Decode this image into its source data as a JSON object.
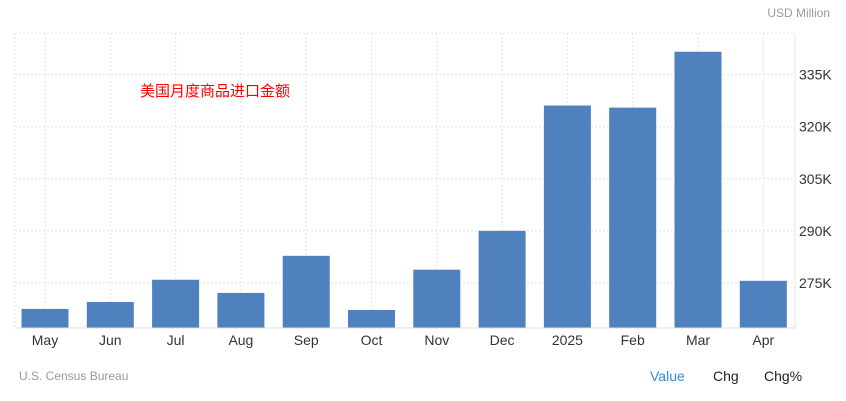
{
  "unit_label": "USD Million",
  "source": "U.S. Census Bureau",
  "tabs": [
    {
      "label": "Value",
      "active": true
    },
    {
      "label": "Chg",
      "active": false
    },
    {
      "label": "Chg%",
      "active": false
    }
  ],
  "colors": {
    "bar": "#4e81bd",
    "annotation": "#ff0000",
    "active_tab": "#2f8ce6"
  },
  "chart_data": {
    "type": "bar",
    "annotation": "美国月度商品进口金额",
    "categories": [
      "May",
      "Jun",
      "Jul",
      "Aug",
      "Sep",
      "Oct",
      "Nov",
      "Dec",
      "2025",
      "Feb",
      "Mar",
      "Apr"
    ],
    "values": [
      267.5,
      269.5,
      275.9,
      272.1,
      282.8,
      267.2,
      278.8,
      290.0,
      326.1,
      325.5,
      341.6,
      275.6
    ],
    "ylim": [
      262,
      347
    ],
    "yticks": [
      275,
      290,
      305,
      320,
      335
    ],
    "ytick_labels": [
      "275K",
      "290K",
      "305K",
      "320K",
      "335K"
    ],
    "y_axis_side": "right",
    "grid": true
  }
}
